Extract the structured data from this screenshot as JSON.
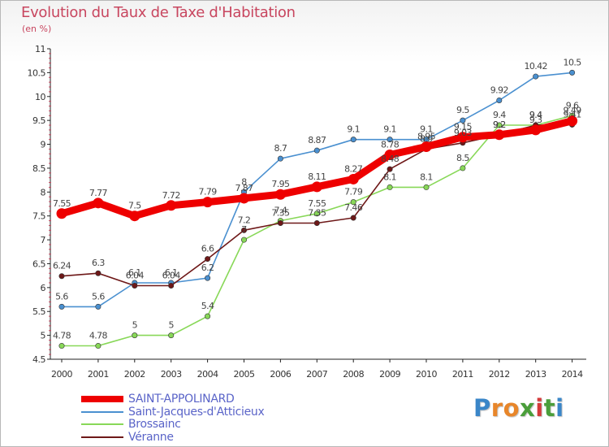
{
  "chart_data": {
    "type": "line",
    "title": "Evolution du Taux de Taxe d'Habitation",
    "subtitle": "(en %)",
    "x": [
      "2000",
      "2001",
      "2002",
      "2003",
      "2004",
      "2005",
      "2006",
      "2007",
      "2008",
      "2009",
      "2010",
      "2011",
      "2012",
      "2013",
      "2014"
    ],
    "ylim": [
      4.5,
      11
    ],
    "yticks": [
      "4.5",
      "5",
      "5.5",
      "6",
      "6.5",
      "7",
      "7.5",
      "8",
      "8.5",
      "9",
      "9.5",
      "10",
      "10.5",
      "11"
    ],
    "grid": false,
    "legend_position": "bottom-left",
    "series": [
      {
        "name": "SAINT-APPOLINARD",
        "color": "#ee0000",
        "values": [
          7.55,
          7.77,
          7.5,
          7.72,
          7.79,
          7.87,
          7.95,
          8.11,
          8.27,
          8.78,
          8.95,
          9.15,
          9.2,
          9.3,
          9.49
        ],
        "labels": [
          "7.55",
          "7.77",
          "7.5",
          "7.72",
          "7.79",
          "7.87",
          "7.95",
          "8.11",
          "8.27",
          "8.78",
          "8.95",
          "9.15",
          "9.2",
          "9.3",
          "9.49"
        ]
      },
      {
        "name": "Saint-Jacques-d'Atticieux",
        "color": "#4a90d0",
        "values": [
          5.6,
          5.6,
          6.1,
          6.1,
          6.2,
          8,
          8.7,
          8.87,
          9.1,
          9.1,
          9.1,
          9.5,
          9.92,
          10.42,
          10.5
        ],
        "labels": [
          "5.6",
          "5.6",
          "6.1",
          "6.1",
          "6.2",
          "8",
          "8.7",
          "8.87",
          "9.1",
          "9.1",
          "9.1",
          "9.5",
          "9.92",
          "10.42",
          "10.5"
        ]
      },
      {
        "name": "Brossainc",
        "color": "#88d858",
        "values": [
          4.78,
          4.78,
          5,
          5,
          5.4,
          7,
          7.4,
          7.55,
          7.79,
          8.1,
          8.1,
          8.5,
          9.4,
          9.4,
          9.6
        ],
        "labels": [
          "4.78",
          "4.78",
          "5",
          "5",
          "5.4",
          "7",
          "7.4",
          "7.55",
          "7.79",
          "8.1",
          "8.1",
          "8.5",
          "9.4",
          "9.4",
          "9.6"
        ]
      },
      {
        "name": "Véranne",
        "color": "#6e1818",
        "values": [
          6.24,
          6.3,
          6.04,
          6.04,
          6.6,
          7.2,
          7.35,
          7.35,
          7.46,
          8.48,
          8.9,
          9.03,
          9.2,
          9.4,
          9.41
        ],
        "labels": [
          "6.24",
          "6.3",
          "6.04",
          "6.04",
          "6.6",
          "7.2",
          "7.35",
          "7.35",
          "7.46",
          "8.48",
          "8.9",
          "9.03",
          "9.2",
          "9.4",
          "9.41"
        ]
      }
    ]
  },
  "logo": {
    "letters": [
      "P",
      "r",
      "o",
      "x",
      "i",
      "t",
      "i"
    ],
    "colors": [
      "#3a86c8",
      "#e8862a",
      "#e8862a",
      "#4a9e3a",
      "#d43a3a",
      "#4a9e3a",
      "#3a86c8"
    ]
  }
}
